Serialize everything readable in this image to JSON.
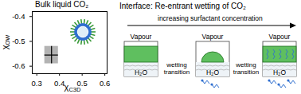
{
  "chart_data": {
    "type": "scatter",
    "title": "Bulk liquid CO₂",
    "x_label": "χC3D",
    "y_label": "χOW",
    "x": [
      0.365
    ],
    "y": [
      -0.555
    ],
    "x_error": [
      0.03
    ],
    "y_error": [
      0.035
    ],
    "color": "#b3b3b3",
    "xlim": [
      0.28,
      0.61
    ],
    "xticks": [
      0.3,
      0.4,
      0.5,
      0.6
    ],
    "ylim": [
      -0.63,
      -0.38
    ],
    "yticks": [
      -0.6,
      -0.5,
      -0.4
    ]
  },
  "diagram": {
    "title": "Interface: Re-entrant wetting of CO₂",
    "arrow_label": "increasing surfactant concentration",
    "panels": [
      {
        "top": "Vapour",
        "bottom": "H₂O"
      },
      {
        "top": "Vapour",
        "bottom": "H₂O"
      },
      {
        "top": "Vapour",
        "bottom": "H₂O"
      }
    ],
    "transitions": [
      "wetting transition",
      "wetting transition"
    ]
  }
}
